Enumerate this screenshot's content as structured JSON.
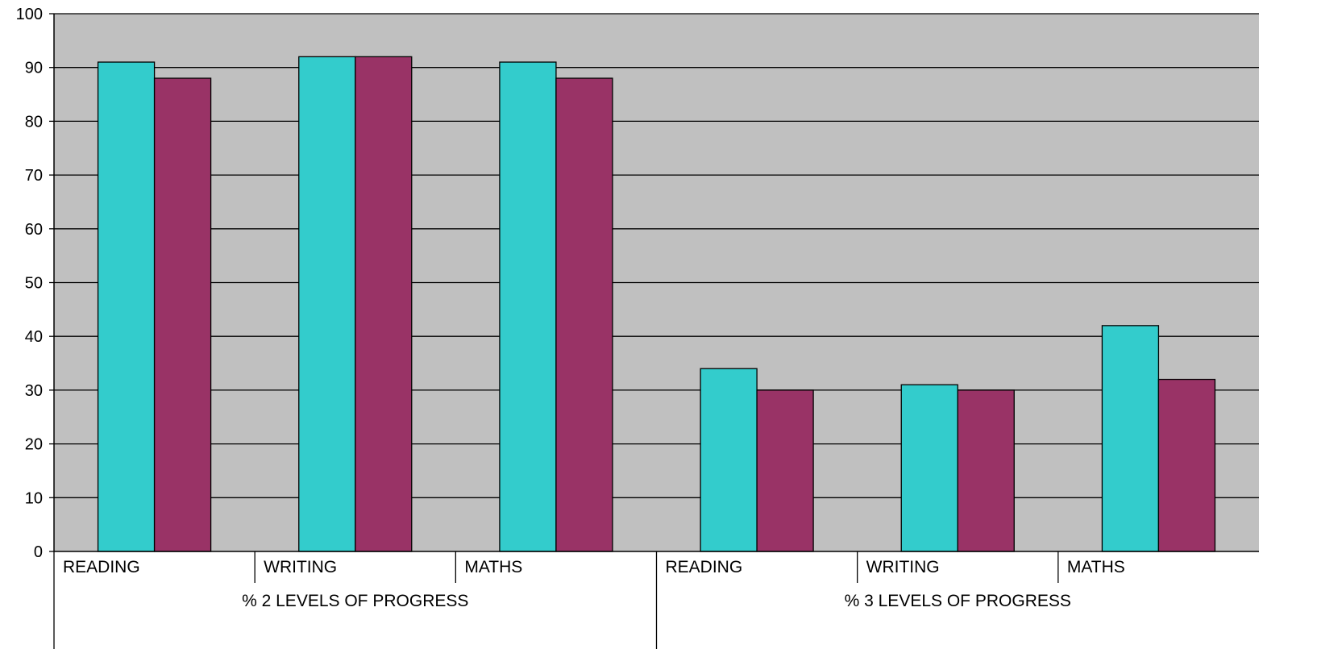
{
  "chart_data": {
    "type": "bar",
    "title": "",
    "xlabel": "",
    "ylabel": "",
    "ylim": [
      0,
      100
    ],
    "yticks": [
      0,
      10,
      20,
      30,
      40,
      50,
      60,
      70,
      80,
      90,
      100
    ],
    "grid": true,
    "legend": "none",
    "groups": [
      {
        "label": "% 2 LEVELS OF PROGRESS",
        "categories": [
          "READING",
          "WRITING",
          "MATHS"
        ]
      },
      {
        "label": "% 3 LEVELS OF PROGRESS",
        "categories": [
          "READING",
          "WRITING",
          "MATHS"
        ]
      }
    ],
    "series": [
      {
        "values": [
          91,
          92,
          91,
          34,
          31,
          42
        ],
        "color": "#33CCCC"
      },
      {
        "values": [
          88,
          92,
          88,
          30,
          30,
          32
        ],
        "color": "#993366"
      }
    ],
    "plot_background": "#C0C0C0"
  }
}
